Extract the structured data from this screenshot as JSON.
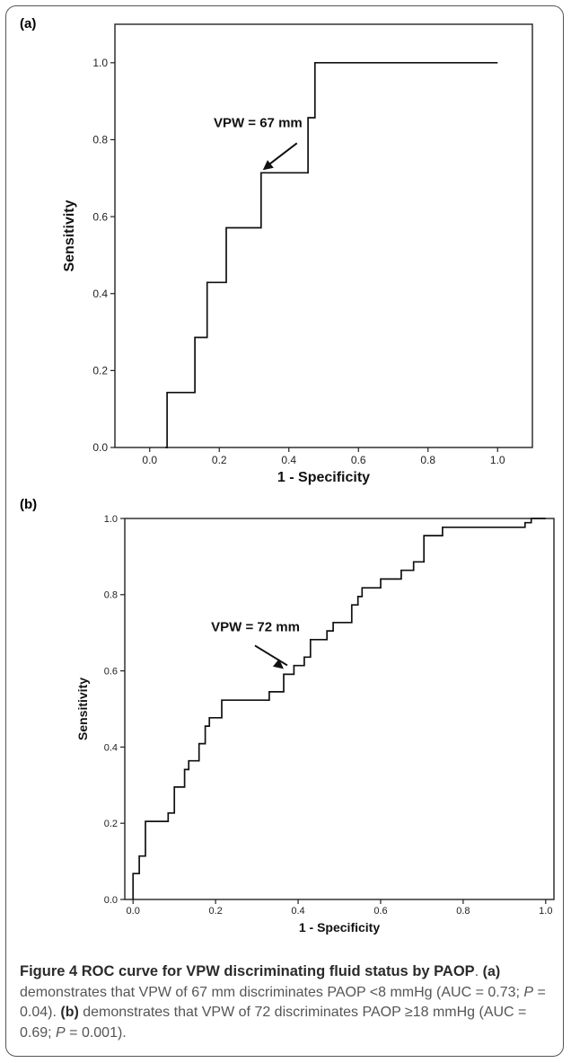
{
  "chart_data": [
    {
      "type": "line",
      "panel_label": "(a)",
      "xlabel": "1 - Specificity",
      "ylabel": "Sensitivity",
      "xlim": [
        -0.1,
        1.1
      ],
      "ylim": [
        0.0,
        1.1
      ],
      "xticks": [
        "0.0",
        "0.2",
        "0.4",
        "0.6",
        "0.8",
        "1.0"
      ],
      "yticks": [
        "0.0",
        "0.2",
        "0.4",
        "0.6",
        "0.8",
        "1.0"
      ],
      "grid": false,
      "points": [
        [
          0.045,
          0
        ],
        [
          0.05,
          0
        ],
        [
          0.05,
          0.143
        ],
        [
          0.13,
          0.143
        ],
        [
          0.13,
          0.286
        ],
        [
          0.165,
          0.286
        ],
        [
          0.165,
          0.429
        ],
        [
          0.22,
          0.429
        ],
        [
          0.22,
          0.571
        ],
        [
          0.32,
          0.571
        ],
        [
          0.32,
          0.714
        ],
        [
          0.455,
          0.714
        ],
        [
          0.455,
          0.857
        ],
        [
          0.475,
          0.857
        ],
        [
          0.475,
          1.0
        ],
        [
          1.0,
          1.0
        ]
      ],
      "annotation": {
        "text": "VPW = 67 mm",
        "x": 0.32,
        "y": 0.714
      }
    },
    {
      "type": "line",
      "panel_label": "(b)",
      "xlabel": "1 - Specificity",
      "ylabel": "Sensitivity",
      "xlim": [
        -0.02,
        1.02
      ],
      "ylim": [
        0.0,
        1.0
      ],
      "xticks": [
        "0.0",
        "0.2",
        "0.4",
        "0.6",
        "0.8",
        "1.0"
      ],
      "yticks": [
        "0.0",
        "0.2",
        "0.4",
        "0.6",
        "0.8",
        "1.0"
      ],
      "grid": false,
      "points": [
        [
          0,
          0
        ],
        [
          0,
          0.068
        ],
        [
          0.015,
          0.068
        ],
        [
          0.015,
          0.114
        ],
        [
          0.03,
          0.114
        ],
        [
          0.03,
          0.205
        ],
        [
          0.085,
          0.205
        ],
        [
          0.085,
          0.227
        ],
        [
          0.1,
          0.227
        ],
        [
          0.1,
          0.295
        ],
        [
          0.125,
          0.295
        ],
        [
          0.125,
          0.341
        ],
        [
          0.135,
          0.341
        ],
        [
          0.135,
          0.364
        ],
        [
          0.16,
          0.364
        ],
        [
          0.16,
          0.409
        ],
        [
          0.175,
          0.409
        ],
        [
          0.175,
          0.455
        ],
        [
          0.185,
          0.455
        ],
        [
          0.185,
          0.477
        ],
        [
          0.215,
          0.477
        ],
        [
          0.215,
          0.523
        ],
        [
          0.33,
          0.523
        ],
        [
          0.33,
          0.545
        ],
        [
          0.365,
          0.545
        ],
        [
          0.365,
          0.591
        ],
        [
          0.39,
          0.591
        ],
        [
          0.39,
          0.614
        ],
        [
          0.415,
          0.614
        ],
        [
          0.415,
          0.636
        ],
        [
          0.43,
          0.636
        ],
        [
          0.43,
          0.682
        ],
        [
          0.47,
          0.682
        ],
        [
          0.47,
          0.705
        ],
        [
          0.485,
          0.705
        ],
        [
          0.485,
          0.727
        ],
        [
          0.53,
          0.727
        ],
        [
          0.53,
          0.773
        ],
        [
          0.545,
          0.773
        ],
        [
          0.545,
          0.795
        ],
        [
          0.555,
          0.795
        ],
        [
          0.555,
          0.818
        ],
        [
          0.6,
          0.818
        ],
        [
          0.6,
          0.841
        ],
        [
          0.65,
          0.841
        ],
        [
          0.65,
          0.864
        ],
        [
          0.68,
          0.864
        ],
        [
          0.68,
          0.886
        ],
        [
          0.705,
          0.886
        ],
        [
          0.705,
          0.955
        ],
        [
          0.75,
          0.955
        ],
        [
          0.75,
          0.977
        ],
        [
          0.95,
          0.977
        ],
        [
          0.95,
          0.989
        ],
        [
          0.965,
          0.989
        ],
        [
          0.965,
          1.0
        ],
        [
          1.0,
          1.0
        ]
      ],
      "annotation": {
        "text": "VPW = 72 mm",
        "x": 0.365,
        "y": 0.591
      }
    }
  ],
  "caption": {
    "title": "Figure 4 ROC curve for VPW discriminating fluid status by PAOP",
    "period": ".",
    "a_label": "(a)",
    "a_text_1": " demonstrates that VPW of 67 mm discriminates PAOP <8 mmHg (AUC = 0.73; ",
    "p_symbol": "P",
    "a_text_2": " = 0.04). ",
    "b_label": "(b)",
    "b_text_1": " demonstrates that VPW of 72 discriminates PAOP ≥18 mmHg (AUC = 0.69; ",
    "b_text_2": " = 0.001)."
  }
}
